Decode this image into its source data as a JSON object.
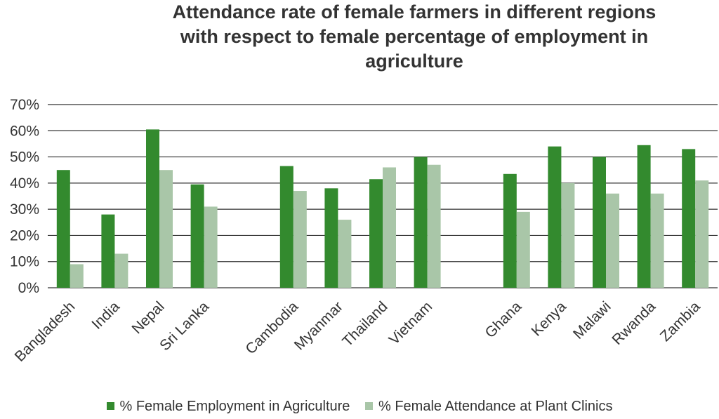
{
  "chart_data": {
    "type": "bar",
    "title": [
      "Attendance rate of female farmers in different regions",
      "with respect to female percentage of employment in",
      "agriculture"
    ],
    "categories": [
      "Bangladesh",
      "India",
      "Nepal",
      "Sri Lanka",
      "",
      "Cambodia",
      "Myanmar",
      "Thailand",
      "Vietnam",
      "",
      "Ghana",
      "Kenya",
      "Malawi",
      "Rwanda",
      "Zambia"
    ],
    "series": [
      {
        "name": "% Female Employment in Agriculture",
        "color": "#338a2e",
        "values": [
          45,
          28,
          60.5,
          39.5,
          null,
          46.5,
          38,
          41.5,
          50,
          null,
          43.5,
          54,
          50,
          54.5,
          53
        ]
      },
      {
        "name": "% Female Attendance at Plant Clinics",
        "color": "#a9c6a8",
        "values": [
          9,
          13,
          45,
          31,
          null,
          37,
          26,
          46,
          47,
          null,
          29,
          40,
          36,
          36,
          41
        ]
      }
    ],
    "yticks": [
      "0%",
      "10%",
      "20%",
      "30%",
      "40%",
      "50%",
      "60%",
      "70%"
    ],
    "ylim": [
      0,
      70
    ],
    "grid": true,
    "legend_position": "bottom"
  }
}
